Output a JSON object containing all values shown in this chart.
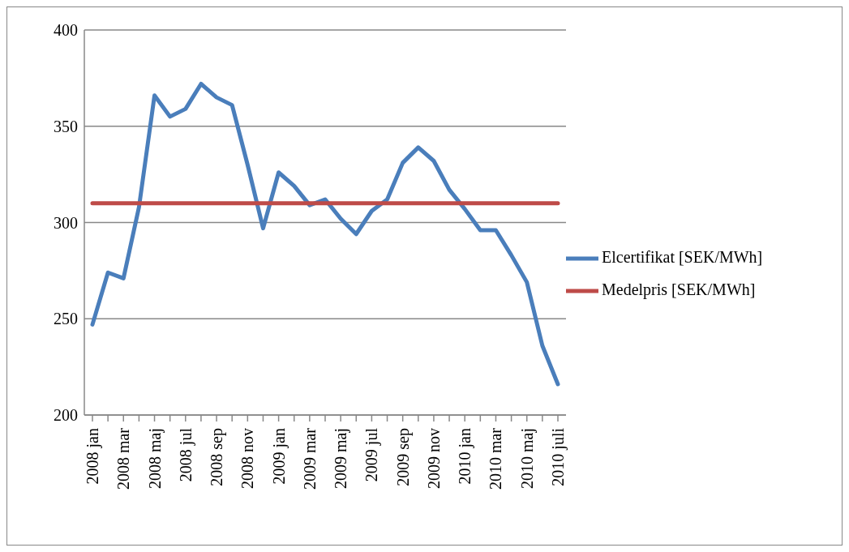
{
  "chart_data": {
    "type": "line",
    "categories": [
      "2008 jan",
      null,
      "2008 mar",
      null,
      "2008 maj",
      null,
      "2008 jul",
      null,
      "2008 sep",
      null,
      "2008 nov",
      null,
      "2009 jan",
      null,
      "2009 mar",
      null,
      "2009 maj",
      null,
      "2009 jul",
      null,
      "2009 sep",
      null,
      "2009 nov",
      null,
      "2010 jan",
      null,
      "2010 mar",
      null,
      "2010 maj",
      null,
      "2010 juli"
    ],
    "series": [
      {
        "name": "Elcertifikat [SEK/MWh]",
        "color": "#4a7ebb",
        "values": [
          247,
          274,
          271,
          308,
          366,
          355,
          359,
          372,
          365,
          361,
          330,
          297,
          326,
          319,
          309,
          312,
          302,
          294,
          306,
          312,
          331,
          339,
          332,
          317,
          307,
          296,
          296,
          283,
          269,
          236,
          216
        ]
      },
      {
        "name": "Medelpris [SEK/MWh]",
        "color": "#be4b48",
        "values": [
          310,
          310,
          310,
          310,
          310,
          310,
          310,
          310,
          310,
          310,
          310,
          310,
          310,
          310,
          310,
          310,
          310,
          310,
          310,
          310,
          310,
          310,
          310,
          310,
          310,
          310,
          310,
          310,
          310,
          310,
          310
        ]
      }
    ],
    "ylim": [
      200,
      400
    ],
    "yticks": [
      200,
      250,
      300,
      350,
      400
    ],
    "grid": "y",
    "legend": "right",
    "marker": "none",
    "line_style": "solid"
  }
}
